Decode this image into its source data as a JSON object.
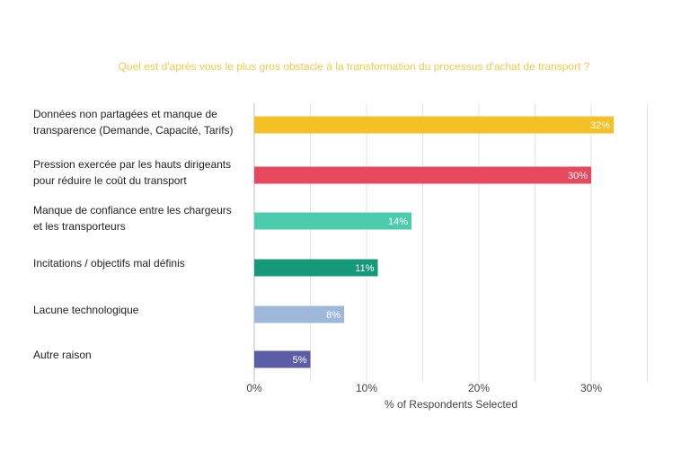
{
  "chart_data": {
    "type": "bar",
    "orientation": "horizontal",
    "title": "Quel est d'après vous le plus gros obstacle à la transformation du processus d'achat de transport ?",
    "xlabel": "% of Respondents Selected",
    "ylabel": "",
    "xlim": [
      0,
      35
    ],
    "ticks": [
      {
        "value": 0,
        "label": "0%"
      },
      {
        "value": 10,
        "label": "10%"
      },
      {
        "value": 20,
        "label": "20%"
      },
      {
        "value": 30,
        "label": "30%"
      }
    ],
    "grid": true,
    "categories": [
      [
        "Données non partagées et manque de",
        "transparence (Demande, Capacité, Tarifs)"
      ],
      [
        "Pression exercée par les hauts dirigeants",
        "pour réduire le coût du transport"
      ],
      [
        "Manque de confiance entre les chargeurs",
        "et les transporteurs"
      ],
      [
        "Incitations / objectifs mal définis"
      ],
      [
        "Lacune technologique"
      ],
      [
        "Autre raison"
      ]
    ],
    "values": [
      32,
      30,
      14,
      11,
      8,
      5
    ],
    "value_labels": [
      "32%",
      "30%",
      "14%",
      "11%",
      "8%",
      "5%"
    ],
    "colors": [
      "#F5C026",
      "#E6495C",
      "#4CCBAE",
      "#16997A",
      "#9DB8D9",
      "#5B5EA4"
    ],
    "title_color": "#F2C94C"
  }
}
